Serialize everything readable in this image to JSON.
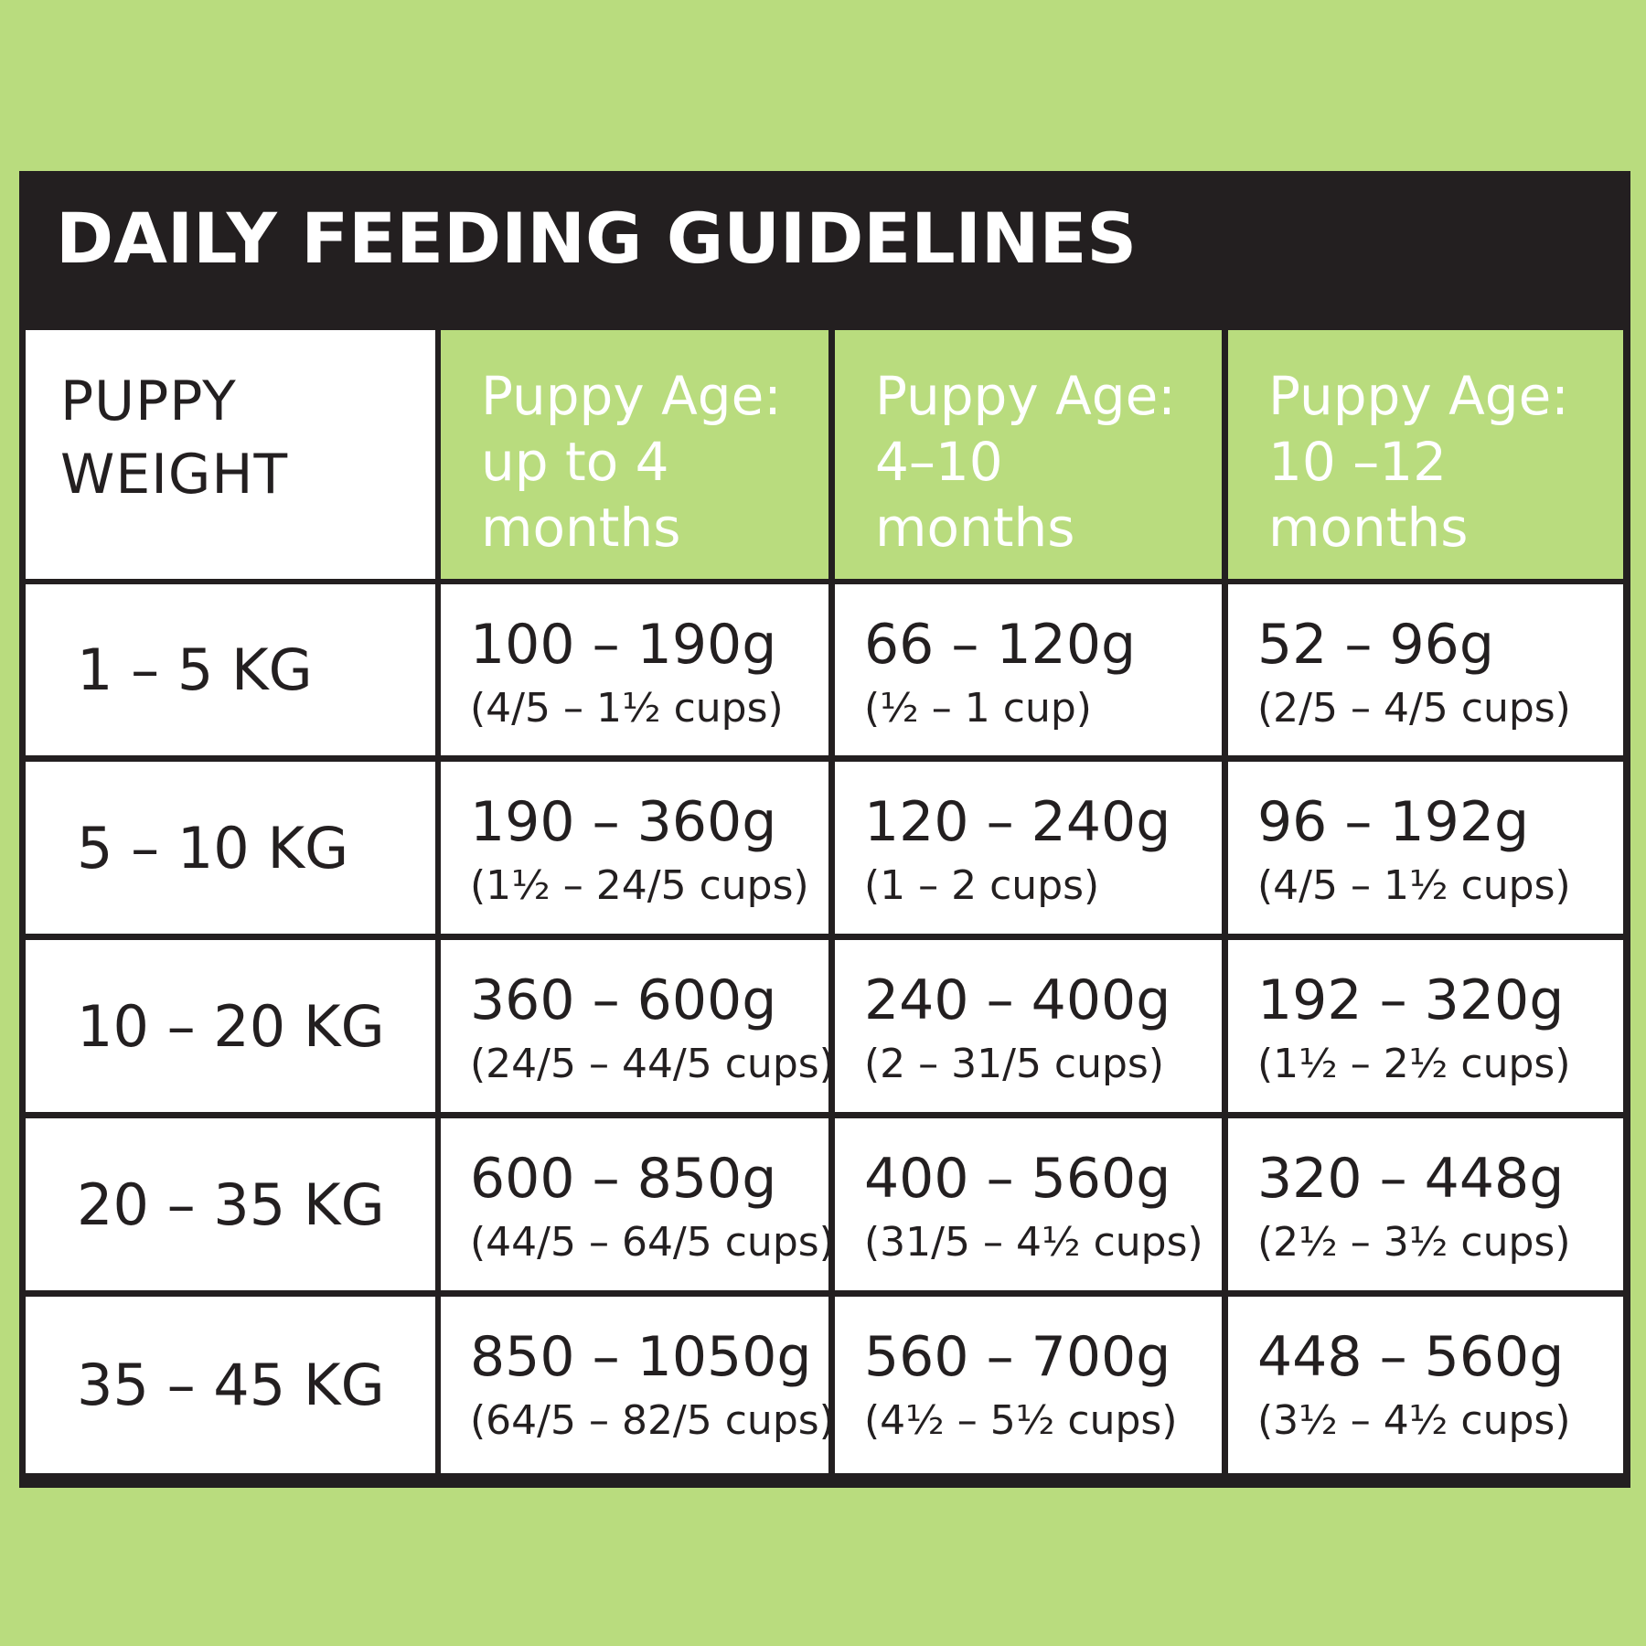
{
  "title": "DAILY FEEDING GUIDELINES",
  "colors": {
    "background": "#b9dc7e",
    "header_bar": "#231f20",
    "header_cells": "#b9dc7e",
    "cell_background": "#ffffff",
    "text": "#231f20"
  },
  "table": {
    "corner_header": [
      "PUPPY",
      "WEIGHT"
    ],
    "age_headers": [
      [
        "Puppy Age:",
        "up to 4",
        "months"
      ],
      [
        "Puppy Age:",
        "4–10",
        "months"
      ],
      [
        "Puppy Age:",
        "10 –12",
        "months"
      ]
    ],
    "rows": [
      {
        "weight": "1 – 5 KG",
        "amounts": [
          {
            "grams": "100 – 190g",
            "cups": "(4/5 – 1½ cups)"
          },
          {
            "grams": "66 – 120g",
            "cups": "(½ – 1 cup)"
          },
          {
            "grams": "52 – 96g",
            "cups": "(2/5 – 4/5 cups)"
          }
        ]
      },
      {
        "weight": "5 – 10 KG",
        "amounts": [
          {
            "grams": "190 – 360g",
            "cups": "(1½ – 24/5 cups)"
          },
          {
            "grams": "120 – 240g",
            "cups": "(1 – 2 cups)"
          },
          {
            "grams": "96 – 192g",
            "cups": "(4/5 – 1½ cups)"
          }
        ]
      },
      {
        "weight": "10 – 20 KG",
        "amounts": [
          {
            "grams": "360 – 600g",
            "cups": "(24/5 – 44/5 cups)"
          },
          {
            "grams": "240 – 400g",
            "cups": "(2 – 31/5 cups)"
          },
          {
            "grams": "192 – 320g",
            "cups": "(1½ – 2½ cups)"
          }
        ]
      },
      {
        "weight": "20 – 35 KG",
        "amounts": [
          {
            "grams": "600 – 850g",
            "cups": "(44/5 – 64/5 cups)"
          },
          {
            "grams": "400 – 560g",
            "cups": "(31/5 – 4½ cups)"
          },
          {
            "grams": "320 – 448g",
            "cups": "(2½ – 3½ cups)"
          }
        ]
      },
      {
        "weight": "35 – 45 KG",
        "amounts": [
          {
            "grams": "850 – 1050g",
            "cups": "(64/5 – 82/5 cups)"
          },
          {
            "grams": "560 – 700g",
            "cups": "(4½ – 5½ cups)"
          },
          {
            "grams": "448 – 560g",
            "cups": "(3½ – 4½ cups)"
          }
        ]
      }
    ]
  }
}
